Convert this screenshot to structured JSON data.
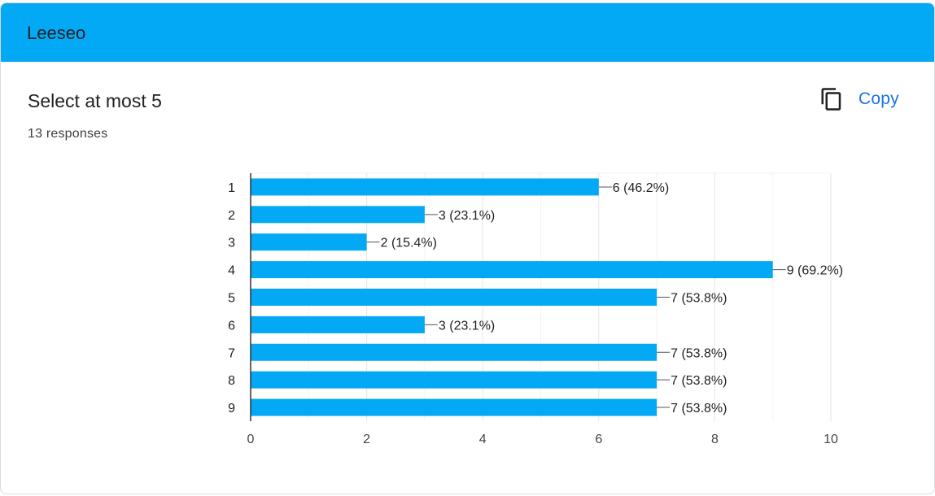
{
  "header": {
    "title": "Leeseo"
  },
  "question": {
    "title": "Select at most 5",
    "responses": "13 responses"
  },
  "copy": {
    "label": "Copy",
    "icon": "copy-icon"
  },
  "colors": {
    "header": "#03a9f4",
    "bar": "#03a9f4",
    "accent": "#1a73e8"
  },
  "chart_data": {
    "type": "bar",
    "orientation": "horizontal",
    "categories": [
      "1",
      "2",
      "3",
      "4",
      "5",
      "6",
      "7",
      "8",
      "9"
    ],
    "values": [
      6,
      3,
      2,
      9,
      7,
      3,
      7,
      7,
      7
    ],
    "data_labels": [
      "6 (46.2%)",
      "3 (23.1%)",
      "2 (15.4%)",
      "9 (69.2%)",
      "7 (53.8%)",
      "3 (23.1%)",
      "7 (53.8%)",
      "7 (53.8%)",
      "7 (53.8%)"
    ],
    "x_ticks": [
      "0",
      "2",
      "4",
      "6",
      "8",
      "10"
    ],
    "xlim": [
      0,
      10
    ],
    "grid": true,
    "title": "",
    "xlabel": "",
    "ylabel": ""
  }
}
